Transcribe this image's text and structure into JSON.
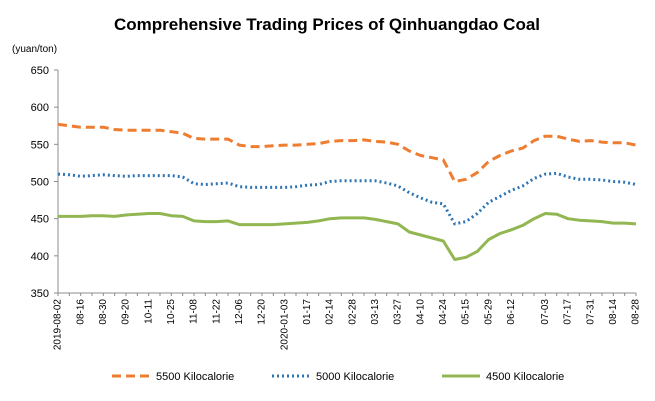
{
  "chart_data": {
    "type": "line",
    "title": "Comprehensive Trading Prices of Qinhuangdao Coal",
    "unit_label": "(yuan/ton)",
    "ylim": [
      350,
      650
    ],
    "yticks": [
      350,
      400,
      450,
      500,
      550,
      600,
      650
    ],
    "grid": false,
    "legend_position": "bottom",
    "x": [
      "2019-08-02",
      "08-09",
      "08-16",
      "08-23",
      "08-30",
      "09-06",
      "09-20",
      "09-27",
      "10-11",
      "10-18",
      "10-25",
      "11-01",
      "11-08",
      "11-15",
      "11-22",
      "11-29",
      "12-06",
      "12-13",
      "12-20",
      "12-27",
      "2020-01-03",
      "01-10",
      "01-17",
      "02-07",
      "02-14",
      "02-21",
      "02-28",
      "03-06",
      "03-13",
      "03-20",
      "03-27",
      "04-03",
      "04-10",
      "04-17",
      "04-24",
      "05-01",
      "05-15",
      "05-22",
      "05-29",
      "06-05",
      "06-12",
      "06-19",
      "06-26",
      "07-03",
      "07-10",
      "07-17",
      "07-24",
      "07-31",
      "08-07",
      "08-14",
      "08-21",
      "08-28"
    ],
    "xtick_labels": [
      "2019-08-02",
      "08-16",
      "08-30",
      "09-20",
      "10-11",
      "10-25",
      "11-08",
      "11-22",
      "12-06",
      "12-20",
      "2020-01-03",
      "01-17",
      "02-14",
      "02-28",
      "03-13",
      "03-27",
      "04-10",
      "04-24",
      "05-15",
      "05-29",
      "06-12",
      "07-03",
      "07-17",
      "07-31",
      "08-14",
      "08-28"
    ],
    "series": [
      {
        "name": "5500 Kilocalorie",
        "color": "#ED7D31",
        "style": "dashed",
        "values": [
          577,
          575,
          573,
          573,
          573,
          570,
          569,
          569,
          569,
          569,
          567,
          565,
          558,
          557,
          557,
          557,
          549,
          547,
          547,
          548,
          549,
          549,
          550,
          551,
          554,
          555,
          555,
          556,
          554,
          553,
          550,
          541,
          535,
          532,
          529,
          500,
          503,
          512,
          527,
          535,
          541,
          545,
          555,
          561,
          561,
          557,
          554,
          555,
          553,
          552,
          552,
          549
        ]
      },
      {
        "name": "5000 Kilocalorie",
        "color": "#2E75B6",
        "style": "dotted",
        "values": [
          510,
          509,
          507,
          508,
          509,
          508,
          507,
          508,
          508,
          508,
          508,
          506,
          497,
          496,
          497,
          498,
          493,
          492,
          492,
          492,
          492,
          493,
          495,
          496,
          500,
          501,
          501,
          501,
          501,
          498,
          494,
          485,
          478,
          472,
          470,
          443,
          446,
          457,
          472,
          480,
          488,
          494,
          504,
          510,
          511,
          506,
          503,
          503,
          502,
          500,
          499,
          496
        ]
      },
      {
        "name": "4500 Kilocalorie",
        "color": "#92B752",
        "style": "solid",
        "values": [
          453,
          453,
          453,
          454,
          454,
          453,
          455,
          456,
          457,
          457,
          454,
          453,
          447,
          446,
          446,
          447,
          442,
          442,
          442,
          442,
          443,
          444,
          445,
          447,
          450,
          451,
          451,
          451,
          449,
          446,
          443,
          432,
          428,
          424,
          420,
          395,
          398,
          406,
          422,
          430,
          435,
          441,
          450,
          457,
          456,
          450,
          448,
          447,
          446,
          444,
          444,
          443
        ]
      }
    ]
  }
}
